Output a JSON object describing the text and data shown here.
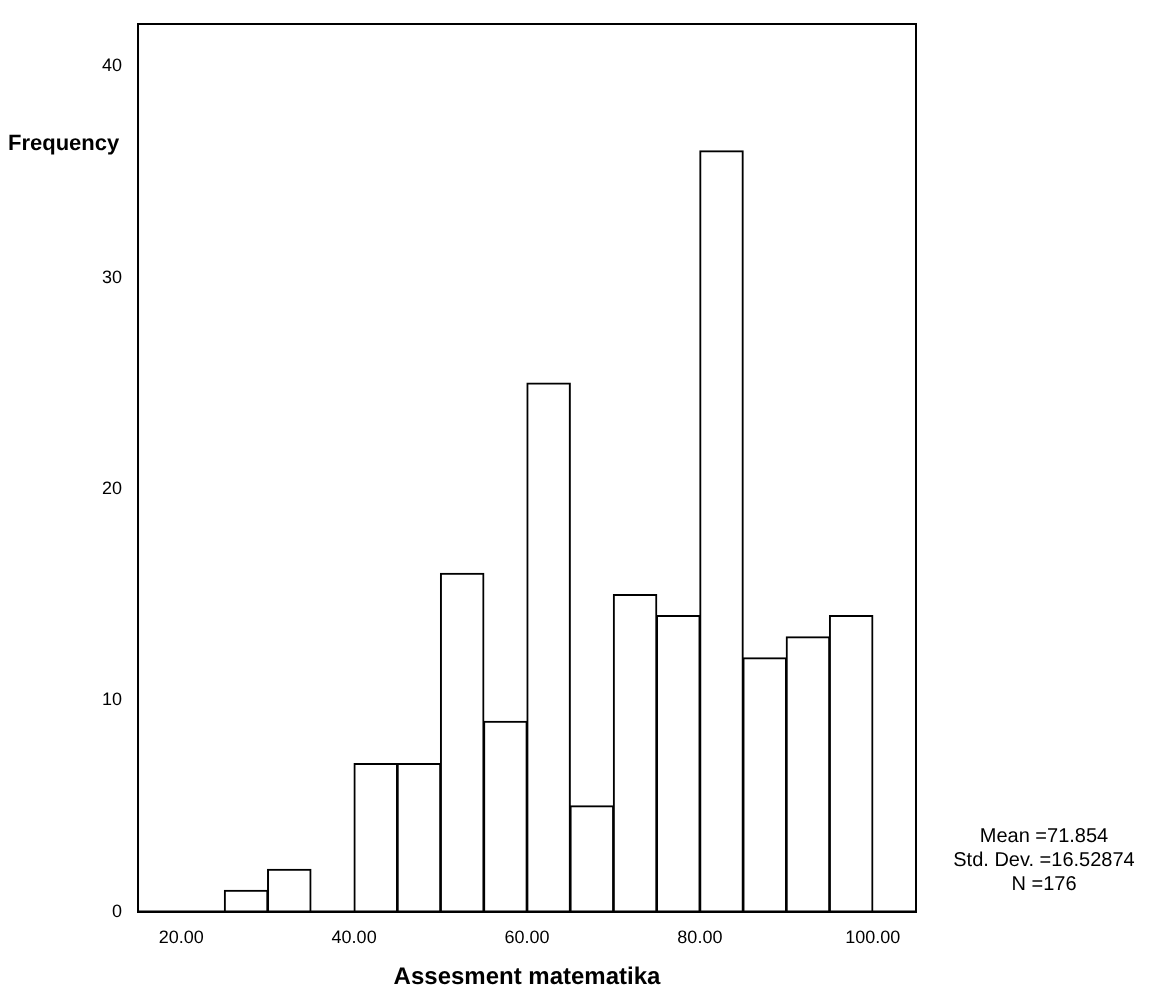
{
  "chart_data": {
    "type": "histogram",
    "xlabel": "Assesment matematika",
    "ylabel": "Frequency",
    "bins": [
      20,
      25,
      30,
      35,
      40,
      45,
      50,
      55,
      60,
      65,
      70,
      75,
      80,
      85,
      90,
      95,
      100
    ],
    "values": [
      0,
      1,
      2,
      0,
      7,
      7,
      16,
      9,
      25,
      5,
      15,
      14,
      36,
      12,
      13,
      14
    ],
    "color": "#ffffff",
    "xlim": [
      15,
      105
    ],
    "ylim": [
      0,
      42
    ],
    "xticks": [
      {
        "value": 20,
        "label": "20.00"
      },
      {
        "value": 40,
        "label": "40.00"
      },
      {
        "value": 60,
        "label": "60.00"
      },
      {
        "value": 80,
        "label": "80.00"
      },
      {
        "value": 100,
        "label": "100.00"
      }
    ],
    "yticks": [
      0,
      10,
      20,
      30,
      40
    ],
    "grid": false,
    "legend": false,
    "annotations": [
      "Mean =71.854",
      "Std. Dev. =16.52874",
      "N =176"
    ]
  }
}
